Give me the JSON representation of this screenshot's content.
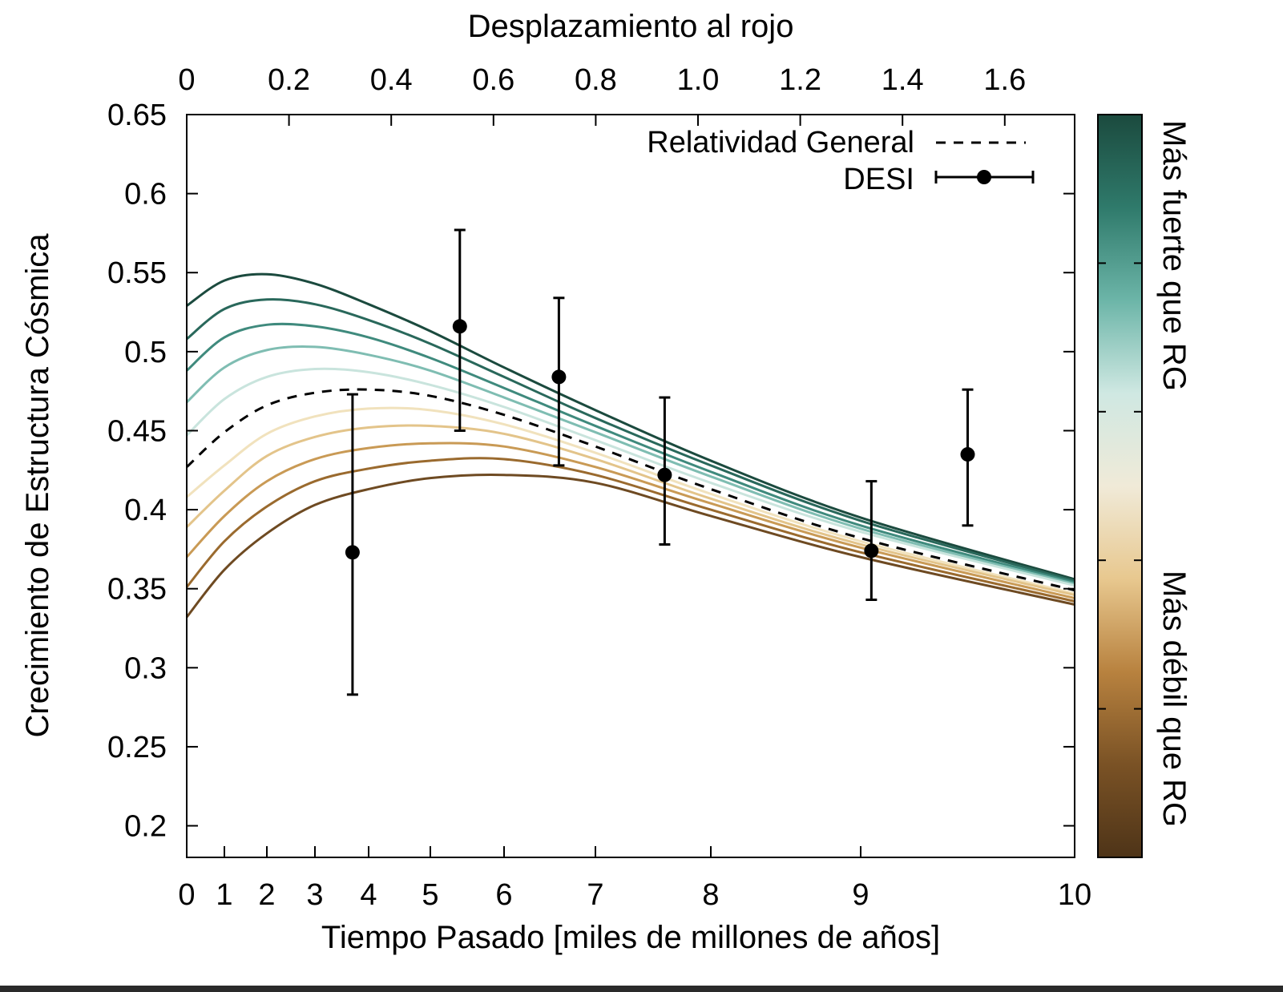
{
  "chart_data": {
    "type": "line",
    "xlabel": "Tiempo Pasado [miles de millones de años]",
    "x2label": "Desplazamiento al rojo",
    "ylabel": "Crecimiento de Estructura Cósmica",
    "xlim": [
      0,
      10
    ],
    "ylim": [
      0.18,
      0.65
    ],
    "x_ticks": [
      "0",
      "1",
      "2",
      "3",
      "4",
      "5",
      "6",
      "7",
      "8",
      "9",
      "10"
    ],
    "x2_ticks": [
      "0",
      "0.2",
      "0.4",
      "0.6",
      "0.8",
      "1.0",
      "1.2",
      "1.4",
      "1.6"
    ],
    "y_ticks": [
      "0.2",
      "0.25",
      "0.3",
      "0.35",
      "0.4",
      "0.45",
      "0.5",
      "0.55",
      "0.6",
      "0.65"
    ],
    "legend": {
      "position": "top-right",
      "gr_label": "Relatividad General",
      "desi_label": "DESI"
    },
    "colorbar": {
      "top_label": "Más fuerte que RG",
      "bottom_label": "Más débil que RG",
      "colors": [
        "#1b4a3e",
        "#2f7a6b",
        "#6cb5a8",
        "#cfe8e2",
        "#f0ead8",
        "#e8c88f",
        "#b8823f",
        "#7a5225",
        "#4e3418"
      ]
    },
    "series": [
      {
        "name": "Relatividad General",
        "style": "dashed",
        "color": "#000000",
        "x": [
          0,
          1,
          2,
          3,
          4,
          5,
          6,
          7,
          8,
          9,
          10
        ],
        "y": [
          0.427,
          0.449,
          0.466,
          0.474,
          0.476,
          0.472,
          0.46,
          0.44,
          0.413,
          0.382,
          0.349
        ]
      },
      {
        "color": "#1b4a3e",
        "x": [
          0,
          1,
          2,
          3,
          4,
          5,
          6,
          7,
          8,
          9,
          10
        ],
        "y": [
          0.529,
          0.545,
          0.549,
          0.543,
          0.53,
          0.513,
          0.49,
          0.463,
          0.431,
          0.395,
          0.356
        ]
      },
      {
        "color": "#29685b",
        "x": [
          0,
          1,
          2,
          3,
          4,
          5,
          6,
          7,
          8,
          9,
          10
        ],
        "y": [
          0.508,
          0.527,
          0.533,
          0.53,
          0.52,
          0.505,
          0.484,
          0.458,
          0.428,
          0.393,
          0.355
        ]
      },
      {
        "color": "#3f8a7d",
        "x": [
          0,
          1,
          2,
          3,
          4,
          5,
          6,
          7,
          8,
          9,
          10
        ],
        "y": [
          0.488,
          0.509,
          0.517,
          0.516,
          0.509,
          0.496,
          0.477,
          0.453,
          0.424,
          0.39,
          0.354
        ]
      },
      {
        "color": "#7fbdb2",
        "x": [
          0,
          1,
          2,
          3,
          4,
          5,
          6,
          7,
          8,
          9,
          10
        ],
        "y": [
          0.468,
          0.49,
          0.501,
          0.503,
          0.498,
          0.488,
          0.471,
          0.449,
          0.421,
          0.388,
          0.353
        ]
      },
      {
        "color": "#c9e4dd",
        "x": [
          0,
          1,
          2,
          3,
          4,
          5,
          6,
          7,
          8,
          9,
          10
        ],
        "y": [
          0.447,
          0.47,
          0.484,
          0.489,
          0.487,
          0.479,
          0.465,
          0.444,
          0.417,
          0.386,
          0.352
        ]
      },
      {
        "color": "#f1e2bd",
        "x": [
          0,
          1,
          2,
          3,
          4,
          5,
          6,
          7,
          8,
          9,
          10
        ],
        "y": [
          0.408,
          0.428,
          0.448,
          0.459,
          0.464,
          0.463,
          0.454,
          0.436,
          0.41,
          0.38,
          0.347
        ]
      },
      {
        "color": "#e3c48a",
        "x": [
          0,
          1,
          2,
          3,
          4,
          5,
          6,
          7,
          8,
          9,
          10
        ],
        "y": [
          0.389,
          0.412,
          0.434,
          0.446,
          0.452,
          0.453,
          0.448,
          0.432,
          0.407,
          0.378,
          0.346
        ]
      },
      {
        "color": "#c99a55",
        "x": [
          0,
          1,
          2,
          3,
          4,
          5,
          6,
          7,
          8,
          9,
          10
        ],
        "y": [
          0.37,
          0.396,
          0.418,
          0.432,
          0.439,
          0.442,
          0.44,
          0.427,
          0.404,
          0.376,
          0.344
        ]
      },
      {
        "color": "#9a6a2e",
        "x": [
          0,
          1,
          2,
          3,
          4,
          5,
          6,
          7,
          8,
          9,
          10
        ],
        "y": [
          0.351,
          0.38,
          0.402,
          0.418,
          0.426,
          0.431,
          0.432,
          0.422,
          0.4,
          0.373,
          0.342
        ]
      },
      {
        "color": "#6e4a22",
        "x": [
          0,
          1,
          2,
          3,
          4,
          5,
          6,
          7,
          8,
          9,
          10
        ],
        "y": [
          0.332,
          0.362,
          0.385,
          0.403,
          0.413,
          0.42,
          0.422,
          0.417,
          0.396,
          0.37,
          0.34
        ]
      }
    ],
    "points": {
      "name": "DESI",
      "x": [
        3.7,
        5.4,
        6.6,
        7.6,
        9.05,
        9.5
      ],
      "y": [
        0.373,
        0.516,
        0.484,
        0.422,
        0.374,
        0.435
      ],
      "err_low": [
        0.283,
        0.45,
        0.428,
        0.378,
        0.343,
        0.39
      ],
      "err_high": [
        0.473,
        0.577,
        0.534,
        0.471,
        0.418,
        0.476
      ]
    }
  }
}
